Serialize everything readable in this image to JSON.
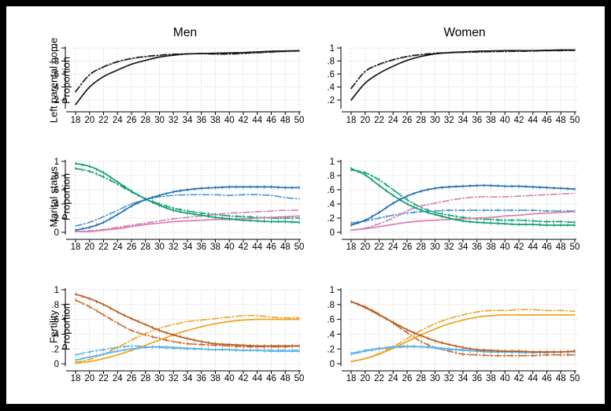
{
  "figure": {
    "column_titles": [
      "Men",
      "Women"
    ],
    "row_labels": [
      {
        "line1": "Left parental home",
        "line2": "Proportion"
      },
      {
        "line1": "Marital status",
        "line2": "Proportion"
      },
      {
        "line1": "Fertility",
        "line2": "Proportion"
      }
    ],
    "frame_color": "#000000",
    "background": "#ffffff",
    "grid_color": "#cccccc",
    "axis_color": "#000000"
  },
  "axis": {
    "x_tick_labels": [
      "18",
      "20",
      "22",
      "24",
      "26",
      "28",
      "30",
      "32",
      "34",
      "36",
      "38",
      "40",
      "42",
      "44",
      "46",
      "48",
      "50"
    ]
  },
  "chart_data": [
    {
      "id": "men-left-parental-home",
      "type": "line",
      "row": 0,
      "col": 0,
      "title": "Men",
      "ylabel": "Left parental home Proportion",
      "xlabel": "",
      "x": [
        18,
        20,
        22,
        24,
        26,
        28,
        30,
        32,
        34,
        36,
        38,
        40,
        42,
        44,
        46,
        48,
        50
      ],
      "xlim": [
        18,
        50
      ],
      "ylim": [
        0,
        1
      ],
      "grid": true,
      "legend": "none",
      "yticks": [
        "1",
        ".8",
        ".6",
        ".4",
        ".2"
      ],
      "series": [
        {
          "name": "gray-dot",
          "color": "#9b9b9b",
          "style": "dot",
          "markers": false,
          "values": [
            0.32,
            0.58,
            0.7,
            0.78,
            0.83,
            0.86,
            0.88,
            0.9,
            0.905,
            0.91,
            0.9,
            0.9,
            0.91,
            0.92,
            0.93,
            0.94,
            0.95
          ]
        },
        {
          "name": "black-dash",
          "color": "#161616",
          "style": "dash",
          "markers": false,
          "values": [
            0.33,
            0.59,
            0.71,
            0.79,
            0.84,
            0.87,
            0.89,
            0.905,
            0.91,
            0.915,
            0.91,
            0.91,
            0.92,
            0.93,
            0.94,
            0.95,
            0.955
          ]
        },
        {
          "name": "black-solid",
          "color": "#161616",
          "style": "solid",
          "markers": false,
          "values": [
            0.13,
            0.4,
            0.56,
            0.66,
            0.75,
            0.81,
            0.86,
            0.89,
            0.91,
            0.915,
            0.92,
            0.925,
            0.93,
            0.94,
            0.95,
            0.955,
            0.96
          ]
        }
      ]
    },
    {
      "id": "women-left-parental-home",
      "type": "line",
      "row": 0,
      "col": 1,
      "title": "Women",
      "ylabel": "Left parental home Proportion",
      "xlabel": "",
      "x": [
        18,
        20,
        22,
        24,
        26,
        28,
        30,
        32,
        34,
        36,
        38,
        40,
        42,
        44,
        46,
        48,
        50
      ],
      "xlim": [
        18,
        50
      ],
      "ylim": [
        0,
        1
      ],
      "grid": true,
      "legend": "none",
      "yticks": [
        "1",
        ".8",
        ".6",
        ".4",
        ".2"
      ],
      "series": [
        {
          "name": "gray-dot",
          "color": "#9b9b9b",
          "style": "dot",
          "markers": false,
          "values": [
            0.37,
            0.63,
            0.74,
            0.81,
            0.86,
            0.89,
            0.91,
            0.92,
            0.93,
            0.935,
            0.94,
            0.94,
            0.95,
            0.95,
            0.955,
            0.96,
            0.96
          ]
        },
        {
          "name": "black-dash",
          "color": "#161616",
          "style": "dash",
          "markers": false,
          "values": [
            0.38,
            0.64,
            0.75,
            0.82,
            0.87,
            0.9,
            0.92,
            0.93,
            0.935,
            0.94,
            0.945,
            0.95,
            0.95,
            0.955,
            0.96,
            0.96,
            0.965
          ]
        },
        {
          "name": "black-solid",
          "color": "#161616",
          "style": "solid",
          "markers": false,
          "values": [
            0.2,
            0.46,
            0.61,
            0.72,
            0.81,
            0.87,
            0.91,
            0.93,
            0.94,
            0.95,
            0.955,
            0.96,
            0.96,
            0.96,
            0.965,
            0.97,
            0.97
          ]
        }
      ]
    },
    {
      "id": "men-marital-status",
      "type": "line",
      "row": 1,
      "col": 0,
      "title": "Men",
      "ylabel": "Marital status Proportion",
      "xlabel": "",
      "x": [
        18,
        20,
        22,
        24,
        26,
        28,
        30,
        32,
        34,
        36,
        38,
        40,
        42,
        44,
        46,
        48,
        50
      ],
      "xlim": [
        18,
        50
      ],
      "ylim": [
        0,
        1
      ],
      "grid": true,
      "legend": "none",
      "yticks": [
        "1",
        ".8",
        ".6",
        ".4",
        ".2",
        "0"
      ],
      "series": [
        {
          "name": "green-dash",
          "color": "#0b9e6d",
          "style": "dash",
          "markers": true,
          "values": [
            0.9,
            0.86,
            0.78,
            0.68,
            0.57,
            0.47,
            0.4,
            0.34,
            0.3,
            0.27,
            0.25,
            0.23,
            0.22,
            0.21,
            0.2,
            0.2,
            0.2
          ]
        },
        {
          "name": "blue-dash",
          "color": "#4b93d1",
          "style": "dash",
          "markers": false,
          "values": [
            0.09,
            0.14,
            0.22,
            0.31,
            0.4,
            0.46,
            0.5,
            0.52,
            0.53,
            0.53,
            0.53,
            0.52,
            0.53,
            0.53,
            0.52,
            0.49,
            0.47
          ]
        },
        {
          "name": "pink-dash",
          "color": "#d77eb4",
          "style": "dash",
          "markers": false,
          "values": [
            0.01,
            0.02,
            0.04,
            0.07,
            0.1,
            0.13,
            0.16,
            0.19,
            0.21,
            0.23,
            0.25,
            0.27,
            0.28,
            0.29,
            0.3,
            0.31,
            0.31
          ]
        },
        {
          "name": "pink-solid",
          "color": "#d77eb4",
          "style": "solid",
          "markers": false,
          "values": [
            0.01,
            0.01,
            0.03,
            0.05,
            0.08,
            0.11,
            0.13,
            0.15,
            0.16,
            0.17,
            0.18,
            0.18,
            0.19,
            0.2,
            0.21,
            0.22,
            0.23
          ]
        },
        {
          "name": "green-solid",
          "color": "#0b9e6d",
          "style": "solid",
          "markers": true,
          "values": [
            0.97,
            0.93,
            0.84,
            0.71,
            0.58,
            0.47,
            0.38,
            0.31,
            0.27,
            0.24,
            0.21,
            0.19,
            0.17,
            0.16,
            0.15,
            0.15,
            0.14
          ]
        },
        {
          "name": "blue-solid",
          "color": "#1f6eb3",
          "style": "solid",
          "markers": true,
          "values": [
            0.03,
            0.07,
            0.14,
            0.25,
            0.37,
            0.46,
            0.52,
            0.57,
            0.6,
            0.62,
            0.63,
            0.64,
            0.64,
            0.64,
            0.64,
            0.63,
            0.63
          ]
        }
      ]
    },
    {
      "id": "women-marital-status",
      "type": "line",
      "row": 1,
      "col": 1,
      "title": "Women",
      "ylabel": "Marital status Proportion",
      "xlabel": "",
      "x": [
        18,
        20,
        22,
        24,
        26,
        28,
        30,
        32,
        34,
        36,
        38,
        40,
        42,
        44,
        46,
        48,
        50
      ],
      "xlim": [
        18,
        50
      ],
      "ylim": [
        0,
        1
      ],
      "grid": true,
      "legend": "none",
      "yticks": [
        "1",
        ".8",
        ".6",
        ".4",
        ".2",
        "0"
      ],
      "series": [
        {
          "name": "green-dash",
          "color": "#0b9e6d",
          "style": "dash",
          "markers": true,
          "values": [
            0.88,
            0.84,
            0.74,
            0.6,
            0.46,
            0.35,
            0.28,
            0.24,
            0.21,
            0.19,
            0.18,
            0.17,
            0.17,
            0.16,
            0.15,
            0.15,
            0.14
          ]
        },
        {
          "name": "blue-dash",
          "color": "#4b93d1",
          "style": "dash",
          "markers": true,
          "values": [
            0.13,
            0.16,
            0.2,
            0.24,
            0.27,
            0.29,
            0.3,
            0.31,
            0.31,
            0.31,
            0.31,
            0.31,
            0.31,
            0.31,
            0.3,
            0.3,
            0.3
          ]
        },
        {
          "name": "pink-dash",
          "color": "#d77eb4",
          "style": "dash",
          "markers": false,
          "values": [
            0.03,
            0.06,
            0.12,
            0.2,
            0.3,
            0.37,
            0.41,
            0.45,
            0.48,
            0.5,
            0.5,
            0.5,
            0.51,
            0.52,
            0.53,
            0.54,
            0.55
          ]
        },
        {
          "name": "pink-solid",
          "color": "#d77eb4",
          "style": "solid",
          "markers": false,
          "values": [
            0.03,
            0.05,
            0.08,
            0.11,
            0.14,
            0.16,
            0.17,
            0.18,
            0.19,
            0.2,
            0.21,
            0.23,
            0.24,
            0.26,
            0.27,
            0.28,
            0.29
          ]
        },
        {
          "name": "green-solid",
          "color": "#0b9e6d",
          "style": "solid",
          "markers": true,
          "values": [
            0.9,
            0.81,
            0.66,
            0.52,
            0.4,
            0.31,
            0.25,
            0.2,
            0.16,
            0.14,
            0.13,
            0.12,
            0.11,
            0.11,
            0.1,
            0.1,
            0.1
          ]
        },
        {
          "name": "blue-solid",
          "color": "#1f6eb3",
          "style": "solid",
          "markers": true,
          "values": [
            0.1,
            0.17,
            0.28,
            0.41,
            0.51,
            0.58,
            0.62,
            0.64,
            0.65,
            0.66,
            0.66,
            0.65,
            0.65,
            0.64,
            0.63,
            0.62,
            0.61
          ]
        }
      ]
    },
    {
      "id": "men-fertility",
      "type": "line",
      "row": 2,
      "col": 0,
      "title": "Men",
      "ylabel": "Fertility Proportion",
      "xlabel": "",
      "x": [
        18,
        20,
        22,
        24,
        26,
        28,
        30,
        32,
        34,
        36,
        38,
        40,
        42,
        44,
        46,
        48,
        50
      ],
      "xlim": [
        18,
        50
      ],
      "ylim": [
        0,
        1
      ],
      "grid": true,
      "legend": "none",
      "yticks": [
        "1",
        ".8",
        ".6",
        ".4",
        ".2",
        "0"
      ],
      "series": [
        {
          "name": "dark-orange-dash",
          "color": "#c8662a",
          "style": "dash",
          "markers": true,
          "values": [
            0.86,
            0.77,
            0.66,
            0.55,
            0.45,
            0.39,
            0.34,
            0.3,
            0.27,
            0.26,
            0.25,
            0.24,
            0.23,
            0.23,
            0.23,
            0.23,
            0.24
          ]
        },
        {
          "name": "sky-blue-dash",
          "color": "#5ab3e6",
          "style": "dash",
          "markers": true,
          "values": [
            0.12,
            0.16,
            0.19,
            0.22,
            0.24,
            0.23,
            0.22,
            0.21,
            0.2,
            0.2,
            0.19,
            0.19,
            0.18,
            0.18,
            0.18,
            0.18,
            0.18
          ]
        },
        {
          "name": "amber-dash",
          "color": "#f0a11e",
          "style": "dash",
          "markers": false,
          "values": [
            0.02,
            0.06,
            0.13,
            0.22,
            0.32,
            0.41,
            0.48,
            0.53,
            0.57,
            0.59,
            0.61,
            0.63,
            0.65,
            0.65,
            0.63,
            0.62,
            0.62
          ]
        },
        {
          "name": "amber-solid",
          "color": "#f0a11e",
          "style": "solid",
          "markers": false,
          "values": [
            0.01,
            0.03,
            0.07,
            0.12,
            0.18,
            0.25,
            0.32,
            0.39,
            0.45,
            0.5,
            0.54,
            0.57,
            0.59,
            0.6,
            0.6,
            0.6,
            0.6
          ]
        },
        {
          "name": "sky-blue-solid",
          "color": "#5ab3e6",
          "style": "solid",
          "markers": true,
          "values": [
            0.05,
            0.09,
            0.13,
            0.17,
            0.2,
            0.22,
            0.23,
            0.22,
            0.21,
            0.2,
            0.19,
            0.19,
            0.18,
            0.18,
            0.17,
            0.17,
            0.17
          ]
        },
        {
          "name": "dark-orange-solid",
          "color": "#bb5a1e",
          "style": "solid",
          "markers": true,
          "values": [
            0.94,
            0.88,
            0.8,
            0.7,
            0.61,
            0.53,
            0.45,
            0.39,
            0.34,
            0.3,
            0.27,
            0.26,
            0.25,
            0.24,
            0.24,
            0.24,
            0.24
          ]
        }
      ]
    },
    {
      "id": "women-fertility",
      "type": "line",
      "row": 2,
      "col": 1,
      "title": "Women",
      "ylabel": "Fertility Proportion",
      "xlabel": "",
      "x": [
        18,
        20,
        22,
        24,
        26,
        28,
        30,
        32,
        34,
        36,
        38,
        40,
        42,
        44,
        46,
        48,
        50
      ],
      "xlim": [
        18,
        50
      ],
      "ylim": [
        0,
        1
      ],
      "grid": true,
      "legend": "none",
      "yticks": [
        "1",
        ".8",
        ".6",
        ".4",
        ".2",
        "0"
      ],
      "series": [
        {
          "name": "dark-orange-dash",
          "color": "#c8662a",
          "style": "dash",
          "markers": true,
          "values": [
            0.84,
            0.77,
            0.67,
            0.55,
            0.42,
            0.3,
            0.22,
            0.17,
            0.13,
            0.12,
            0.11,
            0.11,
            0.11,
            0.11,
            0.12,
            0.12,
            0.12
          ]
        },
        {
          "name": "sky-blue-dash",
          "color": "#5ab3e6",
          "style": "dash",
          "markers": true,
          "values": [
            0.14,
            0.18,
            0.21,
            0.23,
            0.24,
            0.23,
            0.21,
            0.19,
            0.18,
            0.17,
            0.16,
            0.16,
            0.15,
            0.15,
            0.15,
            0.16,
            0.16
          ]
        },
        {
          "name": "amber-dash",
          "color": "#f0a11e",
          "style": "dash",
          "markers": false,
          "values": [
            0.03,
            0.07,
            0.14,
            0.23,
            0.34,
            0.45,
            0.54,
            0.61,
            0.66,
            0.7,
            0.72,
            0.72,
            0.73,
            0.73,
            0.72,
            0.72,
            0.71
          ]
        },
        {
          "name": "amber-solid",
          "color": "#f0a11e",
          "style": "solid",
          "markers": false,
          "values": [
            0.03,
            0.07,
            0.13,
            0.21,
            0.3,
            0.39,
            0.47,
            0.54,
            0.59,
            0.63,
            0.65,
            0.66,
            0.66,
            0.66,
            0.66,
            0.66,
            0.66
          ]
        },
        {
          "name": "sky-blue-solid",
          "color": "#5ab3e6",
          "style": "solid",
          "markers": true,
          "values": [
            0.13,
            0.17,
            0.2,
            0.22,
            0.23,
            0.23,
            0.22,
            0.2,
            0.19,
            0.17,
            0.16,
            0.16,
            0.16,
            0.16,
            0.16,
            0.16,
            0.17
          ]
        },
        {
          "name": "dark-orange-solid",
          "color": "#bb5a1e",
          "style": "solid",
          "markers": true,
          "values": [
            0.84,
            0.76,
            0.66,
            0.56,
            0.46,
            0.38,
            0.31,
            0.26,
            0.22,
            0.19,
            0.18,
            0.17,
            0.17,
            0.16,
            0.16,
            0.16,
            0.17
          ]
        }
      ]
    }
  ]
}
